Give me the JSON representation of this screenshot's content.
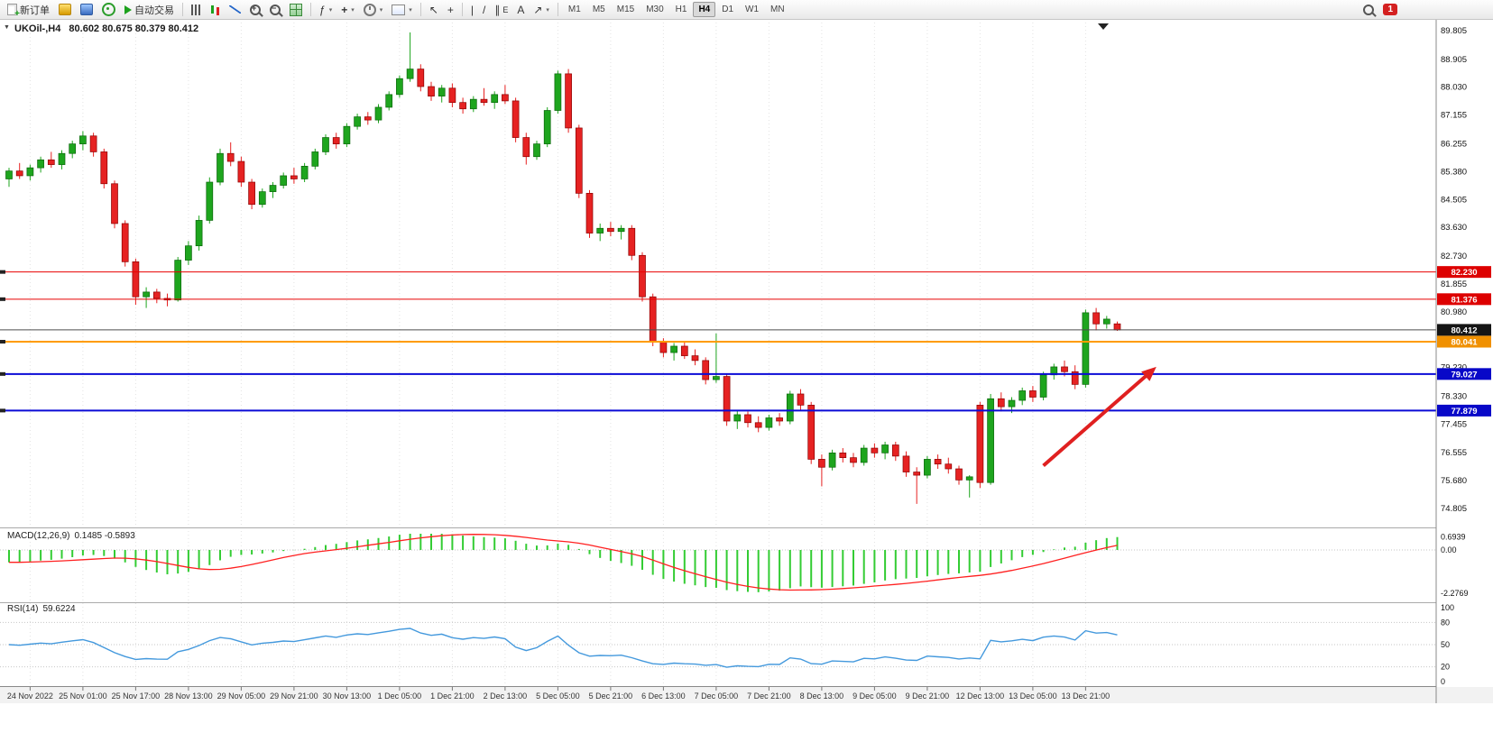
{
  "toolbar": {
    "new_order": "新订单",
    "autotrading": "自动交易",
    "timeframes": [
      "M1",
      "M5",
      "M15",
      "M30",
      "H1",
      "H4",
      "D1",
      "W1",
      "MN"
    ],
    "active_timeframe": "H4",
    "notification_count": "1"
  },
  "chart": {
    "title": "UKOil-,H4",
    "ohlc": "80.602 80.675 80.379 80.412"
  },
  "indicators": {
    "macd_name": "MACD(12,26,9)",
    "macd_values": "0.1485 -0.5893",
    "rsi_name": "RSI(14)",
    "rsi_value": "59.6224"
  },
  "chart_data": {
    "type": "candlestick",
    "symbol": "UKOil-",
    "timeframe": "H4",
    "current": {
      "open": 80.602,
      "high": 80.675,
      "low": 80.379,
      "close": 80.412
    },
    "y_range": [
      74.805,
      89.805
    ],
    "price_axis": [
      "89.805",
      "88.905",
      "88.030",
      "87.155",
      "86.255",
      "85.380",
      "84.505",
      "83.630",
      "82.730",
      "81.855",
      "80.980",
      "80.105",
      "79.230",
      "78.330",
      "77.455",
      "76.555",
      "75.680",
      "74.805"
    ],
    "time_labels": [
      "24 Nov 2022",
      "25 Nov 01:00",
      "25 Nov 17:00",
      "28 Nov 13:00",
      "29 Nov 05:00",
      "29 Nov 21:00",
      "30 Nov 13:00",
      "1 Dec 05:00",
      "1 Dec 21:00",
      "2 Dec 13:00",
      "5 Dec 05:00",
      "5 Dec 21:00",
      "6 Dec 13:00",
      "7 Dec 05:00",
      "7 Dec 21:00",
      "8 Dec 13:00",
      "9 Dec 05:00",
      "9 Dec 21:00",
      "12 Dec 13:00",
      "13 Dec 05:00",
      "13 Dec 21:00"
    ],
    "candles": [
      [
        85.15,
        85.5,
        84.9,
        85.4
      ],
      [
        85.4,
        85.65,
        85.15,
        85.25
      ],
      [
        85.25,
        85.6,
        85.1,
        85.5
      ],
      [
        85.5,
        85.85,
        85.35,
        85.75
      ],
      [
        85.75,
        86.0,
        85.5,
        85.6
      ],
      [
        85.6,
        86.05,
        85.45,
        85.95
      ],
      [
        85.95,
        86.35,
        85.8,
        86.25
      ],
      [
        86.25,
        86.65,
        86.05,
        86.5
      ],
      [
        86.5,
        86.6,
        85.85,
        86.0
      ],
      [
        86.0,
        86.1,
        84.85,
        85.0
      ],
      [
        85.0,
        85.1,
        83.6,
        83.75
      ],
      [
        83.75,
        83.85,
        82.4,
        82.55
      ],
      [
        82.55,
        82.65,
        81.2,
        81.45
      ],
      [
        81.45,
        81.75,
        81.1,
        81.6
      ],
      [
        81.6,
        81.7,
        81.25,
        81.4
      ],
      [
        81.4,
        81.55,
        81.15,
        81.35
      ],
      [
        81.35,
        82.7,
        81.3,
        82.6
      ],
      [
        82.6,
        83.2,
        82.45,
        83.05
      ],
      [
        83.05,
        84.0,
        82.9,
        83.85
      ],
      [
        83.85,
        85.2,
        83.75,
        85.05
      ],
      [
        85.05,
        86.1,
        84.95,
        85.95
      ],
      [
        85.95,
        86.3,
        85.55,
        85.7
      ],
      [
        85.7,
        85.85,
        84.9,
        85.05
      ],
      [
        85.05,
        85.15,
        84.2,
        84.35
      ],
      [
        84.35,
        84.85,
        84.25,
        84.75
      ],
      [
        84.75,
        85.05,
        84.55,
        84.95
      ],
      [
        84.95,
        85.35,
        84.85,
        85.25
      ],
      [
        85.25,
        85.5,
        85.0,
        85.15
      ],
      [
        85.15,
        85.65,
        85.05,
        85.55
      ],
      [
        85.55,
        86.1,
        85.45,
        86.0
      ],
      [
        86.0,
        86.55,
        85.9,
        86.45
      ],
      [
        86.45,
        86.6,
        86.1,
        86.25
      ],
      [
        86.25,
        86.9,
        86.15,
        86.8
      ],
      [
        86.8,
        87.2,
        86.7,
        87.1
      ],
      [
        87.1,
        87.25,
        86.85,
        87.0
      ],
      [
        87.0,
        87.5,
        86.9,
        87.4
      ],
      [
        87.4,
        87.9,
        87.3,
        87.8
      ],
      [
        87.8,
        88.4,
        87.7,
        88.3
      ],
      [
        88.3,
        89.75,
        88.2,
        88.6
      ],
      [
        88.6,
        88.75,
        87.9,
        88.05
      ],
      [
        88.05,
        88.2,
        87.6,
        87.75
      ],
      [
        87.75,
        88.1,
        87.55,
        88.0
      ],
      [
        88.0,
        88.15,
        87.4,
        87.55
      ],
      [
        87.55,
        87.7,
        87.2,
        87.35
      ],
      [
        87.35,
        87.75,
        87.25,
        87.65
      ],
      [
        87.65,
        88.0,
        87.45,
        87.55
      ],
      [
        87.55,
        87.9,
        87.35,
        87.8
      ],
      [
        87.8,
        88.1,
        87.5,
        87.6
      ],
      [
        87.6,
        87.7,
        86.3,
        86.45
      ],
      [
        86.45,
        86.6,
        85.6,
        85.85
      ],
      [
        85.85,
        86.35,
        85.75,
        86.25
      ],
      [
        86.25,
        87.4,
        86.15,
        87.3
      ],
      [
        87.3,
        88.55,
        87.2,
        88.45
      ],
      [
        88.45,
        88.6,
        86.6,
        86.75
      ],
      [
        86.75,
        86.85,
        84.55,
        84.7
      ],
      [
        84.7,
        84.8,
        83.3,
        83.45
      ],
      [
        83.45,
        83.75,
        83.2,
        83.6
      ],
      [
        83.6,
        83.8,
        83.35,
        83.5
      ],
      [
        83.5,
        83.7,
        83.25,
        83.6
      ],
      [
        83.6,
        83.7,
        82.6,
        82.75
      ],
      [
        82.75,
        82.85,
        81.3,
        81.45
      ],
      [
        81.45,
        81.55,
        79.9,
        80.05
      ],
      [
        80.05,
        80.15,
        79.55,
        79.7
      ],
      [
        79.7,
        80.0,
        79.45,
        79.9
      ],
      [
        79.9,
        80.05,
        79.5,
        79.6
      ],
      [
        79.6,
        79.8,
        79.3,
        79.45
      ],
      [
        79.45,
        79.55,
        78.7,
        78.85
      ],
      [
        78.85,
        80.3,
        78.75,
        78.95
      ],
      [
        78.95,
        79.05,
        77.4,
        77.55
      ],
      [
        77.55,
        77.9,
        77.3,
        77.75
      ],
      [
        77.75,
        77.85,
        77.35,
        77.5
      ],
      [
        77.5,
        77.7,
        77.2,
        77.35
      ],
      [
        77.35,
        77.75,
        77.25,
        77.65
      ],
      [
        77.65,
        77.8,
        77.4,
        77.55
      ],
      [
        77.55,
        78.5,
        77.45,
        78.4
      ],
      [
        78.4,
        78.55,
        77.9,
        78.05
      ],
      [
        78.05,
        78.15,
        76.2,
        76.35
      ],
      [
        76.35,
        76.5,
        75.5,
        76.1
      ],
      [
        76.1,
        76.65,
        76.0,
        76.55
      ],
      [
        76.55,
        76.7,
        76.25,
        76.4
      ],
      [
        76.4,
        76.55,
        76.1,
        76.25
      ],
      [
        76.25,
        76.8,
        76.15,
        76.7
      ],
      [
        76.7,
        76.85,
        76.4,
        76.55
      ],
      [
        76.55,
        76.9,
        76.35,
        76.8
      ],
      [
        76.8,
        76.9,
        76.3,
        76.45
      ],
      [
        76.45,
        76.6,
        75.8,
        75.95
      ],
      [
        75.95,
        76.1,
        74.95,
        75.85
      ],
      [
        75.85,
        76.45,
        75.75,
        76.35
      ],
      [
        76.35,
        76.5,
        76.05,
        76.2
      ],
      [
        76.2,
        76.4,
        75.9,
        76.05
      ],
      [
        76.05,
        76.15,
        75.55,
        75.7
      ],
      [
        75.7,
        75.85,
        75.15,
        75.8
      ],
      [
        78.05,
        78.15,
        75.45,
        75.62
      ],
      [
        75.62,
        78.4,
        75.55,
        78.25
      ],
      [
        78.25,
        78.45,
        77.85,
        78.0
      ],
      [
        78.0,
        78.3,
        77.8,
        78.2
      ],
      [
        78.2,
        78.6,
        78.05,
        78.5
      ],
      [
        78.5,
        78.65,
        78.15,
        78.3
      ],
      [
        78.3,
        79.1,
        78.2,
        79.0
      ],
      [
        79.0,
        79.35,
        78.85,
        79.25
      ],
      [
        79.25,
        79.45,
        78.95,
        79.1
      ],
      [
        79.1,
        79.3,
        78.55,
        78.7
      ],
      [
        78.7,
        81.05,
        78.6,
        80.95
      ],
      [
        80.95,
        81.1,
        80.4,
        80.6
      ],
      [
        80.6,
        80.85,
        80.45,
        80.75
      ],
      [
        80.602,
        80.675,
        80.379,
        80.412
      ]
    ],
    "h_lines": [
      {
        "price": 82.23,
        "label": "82.230",
        "color": "#e80000",
        "badge": "#dd0000",
        "width": 1,
        "name": "resistance-line"
      },
      {
        "price": 81.376,
        "label": "81.376",
        "color": "#e80000",
        "badge": "#dd0000",
        "width": 1,
        "name": "resistance-line"
      },
      {
        "price": 80.412,
        "label": "80.412",
        "color": "#4d4d4d",
        "badge": "#151515",
        "width": 1,
        "name": "current-price-line"
      },
      {
        "price": 80.041,
        "label": "80.041",
        "color": "#ff9c00",
        "badge": "#f09000",
        "width": 2,
        "name": "pivot-line"
      },
      {
        "price": 79.027,
        "label": "79.027",
        "color": "#0b0bd6",
        "badge": "#0808c8",
        "width": 2,
        "name": "support-line"
      },
      {
        "price": 77.879,
        "label": "77.879",
        "color": "#0b0bd6",
        "badge": "#0808c8",
        "width": 2,
        "name": "support-line"
      }
    ],
    "trend_arrow": {
      "color": "#e02020",
      "from": {
        "bar": 98,
        "price": 76.15
      },
      "to": {
        "bar": 108.7,
        "price": 79.25
      }
    },
    "macd": {
      "params": "12,26,9",
      "axis": [
        "0.6939",
        "0.00",
        "-2.2769"
      ],
      "range": [
        -2.6,
        0.85
      ]
    },
    "rsi": {
      "params": "14",
      "axis": [
        "100",
        "80",
        "50",
        "20",
        "0"
      ],
      "levels": [
        80,
        50,
        20
      ]
    }
  }
}
